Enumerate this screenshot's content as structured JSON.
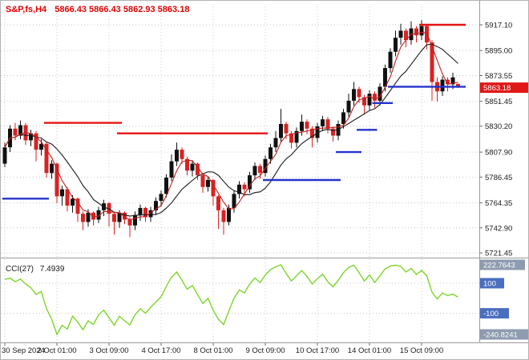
{
  "header": {
    "symbol": "S&P,fs,H4",
    "ohlc": "5866.43 5866.43 5862.93 5863.18"
  },
  "indicator": {
    "name": "CCI(27)",
    "value": "7.4939",
    "max_label": "222.7643",
    "min_label": "-240.8241",
    "level_high": "100",
    "level_low": "-100"
  },
  "price_axis": {
    "current_label": "5863.18"
  },
  "colors": {
    "header_text": "#e00000",
    "axis_text": "#1a1a1a",
    "grid": "#c8c8c8",
    "frame": "#9a9a9a",
    "bull": "#111111",
    "bear": "#d92222",
    "ma_fast": "#c22020",
    "ma_slow": "#1a1a1a",
    "trend_up": "#2433cc",
    "trend_down": "#e41414",
    "cci_line": "#7cd629",
    "badge_price_bg": "#e01818",
    "badge_level_bg": "#4a6fc0",
    "badge_minmax_bg": "#8e9bb0"
  },
  "chart_data": {
    "type": "candlestick",
    "title": "S&P,fs,H4",
    "y_axis_ticks": [
      "5917.10",
      "5895.00",
      "5873.55",
      "5851.45",
      "5830.20",
      "5807.90",
      "5786.45",
      "5764.35",
      "5742.90",
      "5721.45"
    ],
    "last_price": "5863.18",
    "x_tick_labels": [
      "30 Sep 2024",
      "2 Oct 01:00",
      "3 Oct 09:00",
      "4 Oct 17:00",
      "8 Oct 01:00",
      "9 Oct 09:00",
      "10 Oct 17:00",
      "14 Oct 01:00",
      "15 Oct 09:00"
    ],
    "x_tick_candle_indices": [
      0,
      10,
      20,
      30,
      40,
      50,
      60,
      70,
      80
    ],
    "candles": [
      [
        5798,
        5816,
        5795,
        5812
      ],
      [
        5812,
        5831,
        5808,
        5828
      ],
      [
        5828,
        5833,
        5818,
        5822
      ],
      [
        5822,
        5835,
        5819,
        5831
      ],
      [
        5831,
        5833,
        5814,
        5818
      ],
      [
        5818,
        5827,
        5813,
        5824
      ],
      [
        5824,
        5826,
        5800,
        5810
      ],
      [
        5810,
        5819,
        5805,
        5815
      ],
      [
        5815,
        5817,
        5786,
        5790
      ],
      [
        5790,
        5801,
        5785,
        5798
      ],
      [
        5798,
        5799,
        5764,
        5770
      ],
      [
        5770,
        5779,
        5762,
        5776
      ],
      [
        5776,
        5778,
        5757,
        5762
      ],
      [
        5762,
        5771,
        5756,
        5768
      ],
      [
        5768,
        5769,
        5748,
        5755
      ],
      [
        5755,
        5757,
        5741,
        5748
      ],
      [
        5748,
        5759,
        5744,
        5756
      ],
      [
        5756,
        5757,
        5745,
        5750
      ],
      [
        5750,
        5761,
        5747,
        5758
      ],
      [
        5758,
        5767,
        5753,
        5764
      ],
      [
        5764,
        5765,
        5744,
        5755
      ],
      [
        5755,
        5756,
        5737,
        5748
      ],
      [
        5748,
        5758,
        5743,
        5756
      ],
      [
        5756,
        5757,
        5746,
        5750
      ],
      [
        5750,
        5752,
        5735,
        5745
      ],
      [
        5745,
        5757,
        5741,
        5754
      ],
      [
        5754,
        5763,
        5749,
        5760
      ],
      [
        5760,
        5761,
        5748,
        5752
      ],
      [
        5752,
        5761,
        5748,
        5758
      ],
      [
        5758,
        5769,
        5754,
        5766
      ],
      [
        5766,
        5775,
        5761,
        5772
      ],
      [
        5772,
        5789,
        5769,
        5786
      ],
      [
        5786,
        5806,
        5783,
        5800
      ],
      [
        5800,
        5816,
        5796,
        5810
      ],
      [
        5810,
        5812,
        5798,
        5802
      ],
      [
        5802,
        5804,
        5788,
        5792
      ],
      [
        5792,
        5801,
        5787,
        5798
      ],
      [
        5798,
        5799,
        5784,
        5788
      ],
      [
        5788,
        5790,
        5773,
        5778
      ],
      [
        5778,
        5787,
        5774,
        5784
      ],
      [
        5784,
        5785,
        5762,
        5770
      ],
      [
        5770,
        5771,
        5742,
        5758
      ],
      [
        5758,
        5760,
        5737,
        5748
      ],
      [
        5748,
        5763,
        5745,
        5760
      ],
      [
        5760,
        5775,
        5756,
        5772
      ],
      [
        5772,
        5783,
        5768,
        5780
      ],
      [
        5780,
        5782,
        5770,
        5776
      ],
      [
        5776,
        5791,
        5773,
        5788
      ],
      [
        5788,
        5799,
        5784,
        5796
      ],
      [
        5796,
        5798,
        5785,
        5790
      ],
      [
        5790,
        5805,
        5787,
        5802
      ],
      [
        5802,
        5815,
        5798,
        5812
      ],
      [
        5812,
        5826,
        5808,
        5820
      ],
      [
        5820,
        5845,
        5816,
        5832
      ],
      [
        5832,
        5834,
        5819,
        5824
      ],
      [
        5824,
        5826,
        5811,
        5816
      ],
      [
        5816,
        5829,
        5812,
        5826
      ],
      [
        5826,
        5840,
        5822,
        5834
      ],
      [
        5834,
        5836,
        5823,
        5828
      ],
      [
        5828,
        5830,
        5812,
        5820
      ],
      [
        5820,
        5833,
        5816,
        5830
      ],
      [
        5830,
        5839,
        5826,
        5836
      ],
      [
        5836,
        5838,
        5824,
        5828
      ],
      [
        5828,
        5830,
        5817,
        5822
      ],
      [
        5822,
        5835,
        5818,
        5832
      ],
      [
        5832,
        5845,
        5828,
        5842
      ],
      [
        5842,
        5858,
        5838,
        5852
      ],
      [
        5852,
        5868,
        5848,
        5862
      ],
      [
        5862,
        5864,
        5850,
        5855
      ],
      [
        5855,
        5857,
        5840,
        5848
      ],
      [
        5848,
        5861,
        5844,
        5858
      ],
      [
        5858,
        5860,
        5846,
        5852
      ],
      [
        5852,
        5867,
        5848,
        5864
      ],
      [
        5864,
        5883,
        5860,
        5880
      ],
      [
        5880,
        5897,
        5876,
        5894
      ],
      [
        5894,
        5912,
        5890,
        5906
      ],
      [
        5906,
        5918,
        5900,
        5912
      ],
      [
        5912,
        5914,
        5898,
        5904
      ],
      [
        5904,
        5920,
        5900,
        5914
      ],
      [
        5914,
        5916,
        5902,
        5908
      ],
      [
        5908,
        5921,
        5904,
        5916
      ],
      [
        5916,
        5918,
        5896,
        5902
      ],
      [
        5902,
        5904,
        5852,
        5868
      ],
      [
        5868,
        5872,
        5851,
        5860
      ],
      [
        5860,
        5873,
        5856,
        5870
      ],
      [
        5870,
        5872,
        5860,
        5866
      ],
      [
        5866,
        5876,
        5862,
        5872
      ],
      [
        5866.43,
        5866.43,
        5862.93,
        5863.18
      ]
    ],
    "overlays": {
      "ma_fast_period": 4,
      "ma_slow_period": 10,
      "trend_up_segments": [
        [
          0,
          8,
          5768
        ],
        [
          50,
          64,
          5784
        ],
        [
          64,
          68,
          5807.9
        ],
        [
          68,
          71,
          5827
        ],
        [
          71,
          74,
          5850
        ],
        [
          74,
          88,
          5864
        ]
      ],
      "trend_down_segments": [
        [
          8,
          22,
          5833
        ],
        [
          22,
          50,
          5824
        ],
        [
          80,
          88,
          5917.1
        ]
      ]
    },
    "indicator_panel": {
      "type": "line",
      "name": "CCI(27)",
      "current": 7.4939,
      "max": 222.7643,
      "min": -240.8241,
      "levels": [
        100,
        -100
      ],
      "values": [
        125,
        135,
        110,
        128,
        95,
        70,
        25,
        45,
        -70,
        -140,
        -240.8241,
        -180,
        -205,
        -120,
        -160,
        -210,
        -150,
        -175,
        -110,
        -80,
        -130,
        -180,
        -120,
        -150,
        -178,
        -110,
        -70,
        -100,
        -60,
        -25,
        10,
        80,
        140,
        175,
        120,
        60,
        85,
        25,
        -35,
        0,
        -80,
        -140,
        -175,
        -85,
        0,
        55,
        35,
        95,
        135,
        105,
        155,
        190,
        210,
        222.7643,
        165,
        115,
        150,
        185,
        145,
        95,
        130,
        160,
        110,
        75,
        120,
        170,
        205,
        220,
        170,
        115,
        155,
        105,
        150,
        195,
        215,
        220,
        212,
        175,
        198,
        158,
        185,
        150,
        40,
        -5,
        35,
        18,
        28,
        7.4939
      ]
    }
  }
}
